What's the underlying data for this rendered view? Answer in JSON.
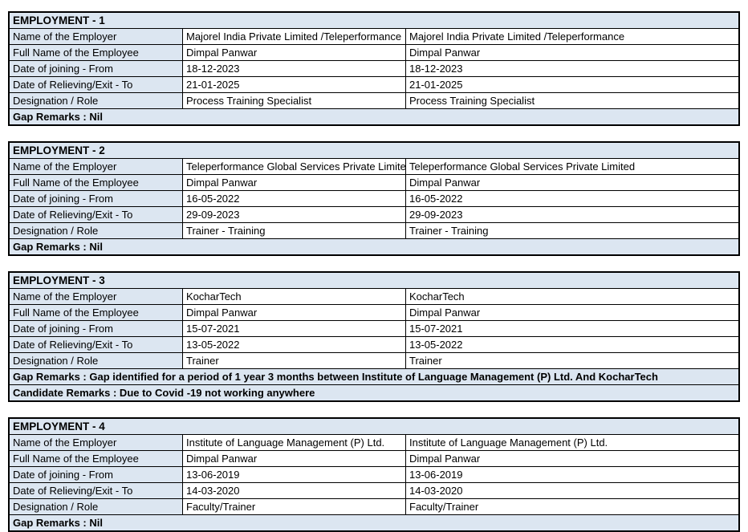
{
  "colors": {
    "fill_light_blue": "#dce6f1",
    "border": "#000000",
    "text": "#000000",
    "background": "#ffffff"
  },
  "sections": [
    {
      "title": "EMPLOYMENT - 1",
      "rows": [
        {
          "label": "Name of the Employer",
          "value": "Majorel India Private Limited /Teleperformance",
          "verified": "Majorel India Private Limited /Teleperformance"
        },
        {
          "label": "Full Name of the Employee",
          "value": "Dimpal Panwar",
          "verified": "Dimpal Panwar"
        },
        {
          "label": "Date of joining - From",
          "value": "18-12-2023",
          "verified": "18-12-2023"
        },
        {
          "label": "Date of Relieving/Exit - To",
          "value": "21-01-2025",
          "verified": "21-01-2025"
        },
        {
          "label": "Designation / Role",
          "value": "Process Training Specialist",
          "verified": "Process Training Specialist"
        }
      ],
      "remarks": [
        "Gap Remarks : Nil"
      ]
    },
    {
      "title": "EMPLOYMENT - 2",
      "rows": [
        {
          "label": "Name of the Employer",
          "value": "Teleperformance Global Services Private Limited",
          "verified": "Teleperformance Global Services Private Limited"
        },
        {
          "label": "Full Name of the Employee",
          "value": "Dimpal Panwar",
          "verified": "Dimpal Panwar"
        },
        {
          "label": "Date of joining - From",
          "value": "16-05-2022",
          "verified": "16-05-2022"
        },
        {
          "label": "Date of Relieving/Exit - To",
          "value": "29-09-2023",
          "verified": "29-09-2023"
        },
        {
          "label": "Designation / Role",
          "value": "Trainer - Training",
          "verified": "Trainer - Training"
        }
      ],
      "remarks": [
        "Gap Remarks : Nil"
      ]
    },
    {
      "title": "EMPLOYMENT - 3",
      "rows": [
        {
          "label": "Name of the Employer",
          "value": "KocharTech",
          "verified": "KocharTech"
        },
        {
          "label": "Full Name of the Employee",
          "value": "Dimpal Panwar",
          "verified": "Dimpal Panwar"
        },
        {
          "label": "Date of joining - From",
          "value": "15-07-2021",
          "verified": "15-07-2021"
        },
        {
          "label": "Date of Relieving/Exit - To",
          "value": "13-05-2022",
          "verified": "13-05-2022"
        },
        {
          "label": "Designation / Role",
          "value": "Trainer",
          "verified": "Trainer"
        }
      ],
      "remarks": [
        "Gap Remarks : Gap identified for a period of 1 year 3 months between Institute of Language Management (P) Ltd. And KocharTech",
        "Candidate Remarks : Due to Covid -19 not working anywhere"
      ]
    },
    {
      "title": "EMPLOYMENT - 4",
      "rows": [
        {
          "label": "Name of the Employer",
          "value": "Institute of Language Management (P) Ltd.",
          "verified": "Institute of Language Management (P) Ltd."
        },
        {
          "label": "Full Name of the Employee",
          "value": "Dimpal Panwar",
          "verified": "Dimpal Panwar"
        },
        {
          "label": "Date of joining - From",
          "value": "13-06-2019",
          "verified": "13-06-2019"
        },
        {
          "label": "Date of Relieving/Exit - To",
          "value": "14-03-2020",
          "verified": "14-03-2020"
        },
        {
          "label": "Designation / Role",
          "value": "Faculty/Trainer",
          "verified": "Faculty/Trainer"
        }
      ],
      "remarks": [
        "Gap Remarks : Nil"
      ]
    }
  ]
}
